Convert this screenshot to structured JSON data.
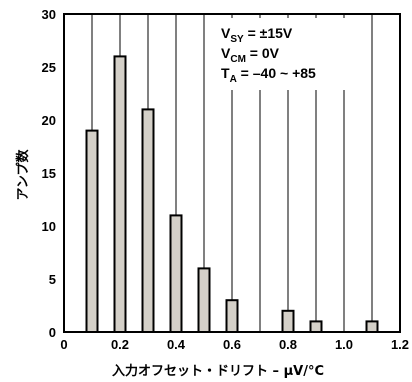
{
  "chart_data": {
    "type": "bar",
    "x": [
      0.1,
      0.2,
      0.3,
      0.4,
      0.5,
      0.6,
      0.8,
      0.9,
      1.1
    ],
    "values": [
      19,
      26,
      21,
      11,
      6,
      3,
      2,
      1,
      1
    ],
    "xlabel": "入力オフセット・ドリフト – µV/°C",
    "ylabel": "アンプ数",
    "xlim": [
      0,
      1.2
    ],
    "ylim": [
      0,
      30
    ],
    "x_ticks": [
      "0",
      "0.2",
      "0.4",
      "0.6",
      "0.8",
      "1.0",
      "1.2"
    ],
    "y_ticks": [
      "0",
      "5",
      "10",
      "15",
      "20",
      "25",
      "30"
    ],
    "grid": "vertical",
    "annotation": {
      "line1": {
        "main": "V",
        "sub": "SY",
        "rest": " = ±15V"
      },
      "line2": {
        "main": "V",
        "sub": "CM",
        "rest": " = 0V"
      },
      "line3": {
        "main": "T",
        "sub": "A",
        "rest": " = –40 ~ +85"
      }
    },
    "colors": {
      "bar_fill": "#d4d0c8",
      "bar_stroke": "#000000",
      "grid": "#000000"
    }
  }
}
